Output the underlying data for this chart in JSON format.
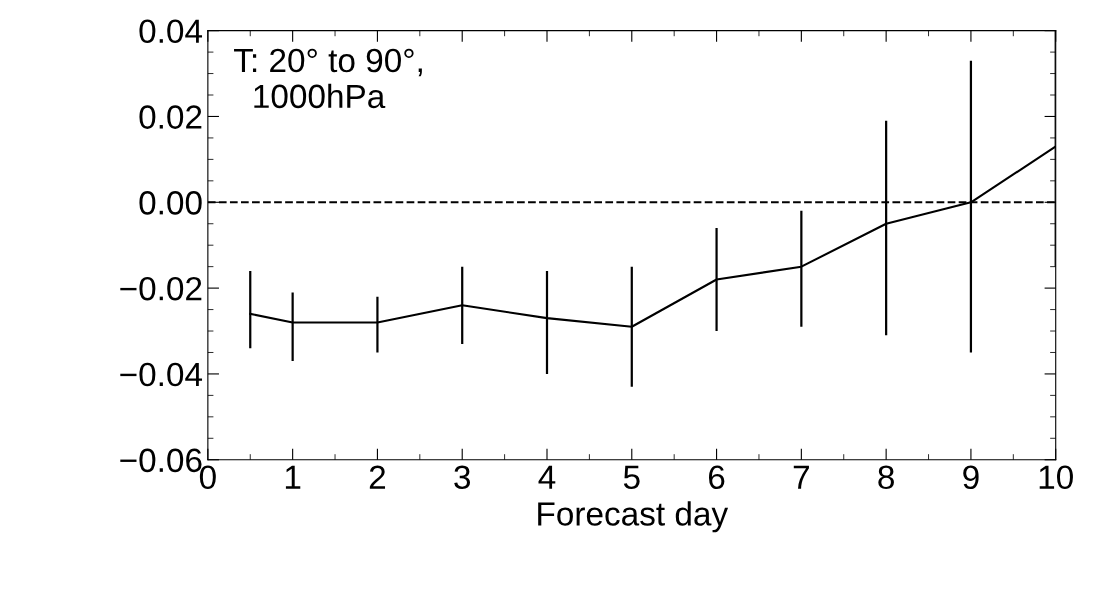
{
  "chart_data": {
    "type": "line",
    "xlabel": "Forecast day",
    "x": [
      0.5,
      1,
      2,
      3,
      4,
      5,
      6,
      7,
      8,
      9,
      10
    ],
    "series": [
      {
        "color": "#000000",
        "values": [
          -0.026,
          -0.028,
          -0.028,
          -0.024,
          -0.027,
          -0.029,
          -0.018,
          -0.015,
          -0.005,
          0.0,
          0.013
        ],
        "errors": [
          [
            -0.034,
            -0.016
          ],
          [
            -0.037,
            -0.021
          ],
          [
            -0.035,
            -0.022
          ],
          [
            -0.033,
            -0.015
          ],
          [
            -0.04,
            -0.016
          ],
          [
            -0.043,
            -0.015
          ],
          [
            -0.03,
            -0.006
          ],
          [
            -0.029,
            -0.002
          ],
          [
            -0.031,
            0.019
          ],
          [
            -0.035,
            0.033
          ],
          [
            -0.015,
            0.04
          ]
        ]
      }
    ],
    "xlim": [
      0,
      10
    ],
    "xticks": [
      0,
      1,
      2,
      3,
      4,
      5,
      6,
      7,
      8,
      9,
      10
    ],
    "ylim": [
      -0.06,
      0.04
    ],
    "yticks": [
      {
        "value": -0.06,
        "label": "−0.06"
      },
      {
        "value": -0.04,
        "label": "−0.04"
      },
      {
        "value": -0.02,
        "label": "−0.02"
      },
      {
        "value": 0,
        "label": "0.00"
      },
      {
        "value": 0.02,
        "label": "0.02"
      },
      {
        "value": 0.04,
        "label": "0.04"
      }
    ],
    "ref_lines": [
      {
        "axis": "y",
        "value": 0,
        "color": "#000000",
        "line_style": "dashed"
      }
    ],
    "annotations": [
      "T: 20° to 90°,\n  1000hPa"
    ],
    "grid": false,
    "legend": false,
    "marker": "none",
    "line_style": "solid"
  }
}
